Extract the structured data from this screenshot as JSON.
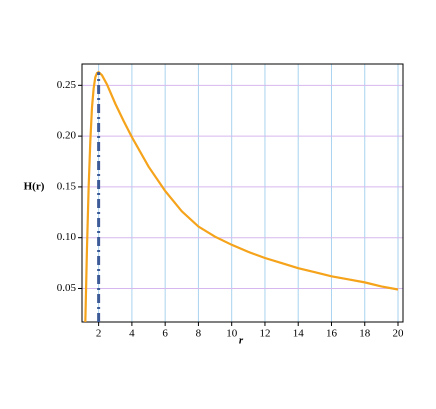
{
  "chart_data": {
    "type": "line",
    "x_label": "r",
    "y_label": "H(r)",
    "xlim": [
      1,
      20.3
    ],
    "ylim": [
      0.017,
      0.271
    ],
    "xticks": [
      2,
      4,
      6,
      8,
      10,
      12,
      14,
      16,
      18,
      20
    ],
    "yticks": [
      0.05,
      {
        "value": 0.1,
        "label": "0.10"
      },
      0.15,
      {
        "value": 0.2,
        "label": "0.20"
      },
      0.25
    ],
    "grid": true,
    "x_grid_color": "#a9d3ef",
    "y_grid_color": "#d7b8ee",
    "series": [
      {
        "color": "#f5a31a",
        "style": "solid",
        "x": [
          1.2,
          1.3,
          1.4,
          1.5,
          1.6,
          1.7,
          1.8,
          1.9,
          2,
          2.2,
          2.5,
          3,
          3.5,
          4,
          5,
          6,
          7,
          8,
          9,
          10,
          11,
          12,
          13,
          14,
          15,
          16,
          17,
          18,
          19,
          20
        ],
        "values": [
          0.017,
          0.09,
          0.15,
          0.195,
          0.228,
          0.247,
          0.258,
          0.262,
          0.263,
          0.26,
          0.251,
          0.232,
          0.215,
          0.199,
          0.17,
          0.146,
          0.126,
          0.111,
          0.101,
          0.093,
          0.086,
          0.08,
          0.075,
          0.07,
          0.066,
          0.062,
          0.059,
          0.056,
          0.052,
          0.049
        ]
      },
      {
        "color": "#3d5a98",
        "style": "dashdot",
        "x": [
          2,
          2
        ],
        "values": [
          0.017,
          0.263
        ]
      }
    ]
  }
}
